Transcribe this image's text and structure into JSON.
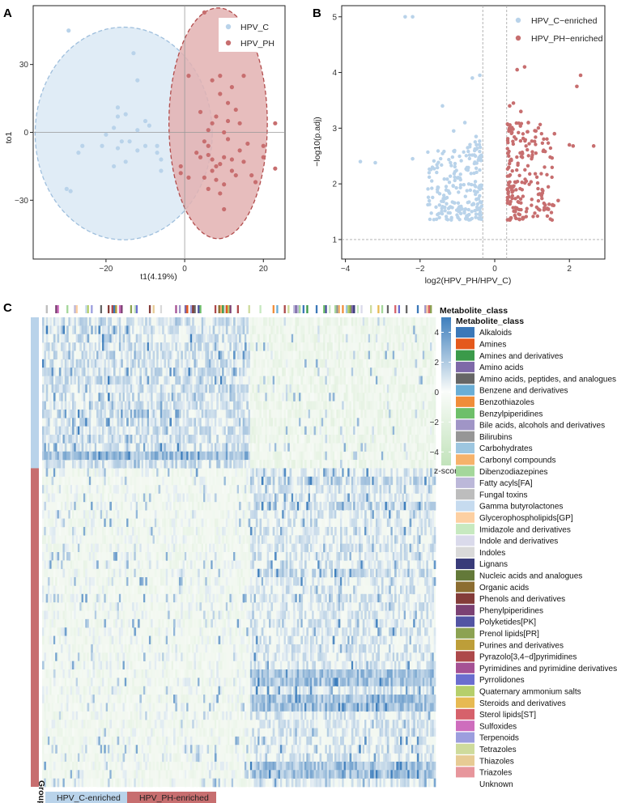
{
  "panels": {
    "A": "A",
    "B": "B",
    "C": "C"
  },
  "colors": {
    "hpv_c": "#b9d3ea",
    "hpv_ph": "#c76e6f",
    "ellipse_c_fill": "#d6e5f3",
    "ellipse_ph_fill": "#e3b2b2",
    "heat_high": "#3f7fbd",
    "heat_low": "#cfe8c9"
  },
  "chart_data": [
    {
      "id": "opls_da",
      "type": "scatter",
      "title": "",
      "xlabel": "t1(4.19%)",
      "ylabel": "to1",
      "xlim": [
        -38.5,
        25.5
      ],
      "ylim": [
        -56,
        56
      ],
      "xticks": [
        -20,
        0,
        20
      ],
      "yticks": [
        -30,
        0,
        30
      ],
      "xtick_labels": [
        "−20",
        "0",
        "20"
      ],
      "ytick_labels": [
        "−30",
        "0",
        "30"
      ],
      "legend": [
        "HPV_C",
        "HPV_PH"
      ],
      "legend_position": "top-right",
      "ellipses": [
        {
          "group": "HPV_C",
          "cx": -15.5,
          "cy": -0.5,
          "rx": 22.5,
          "ry": 47
        },
        {
          "group": "HPV_PH",
          "cx": 8.5,
          "cy": 4,
          "rx": 12.5,
          "ry": 51
        }
      ],
      "series": [
        {
          "name": "HPV_C",
          "points": [
            [
              -29.5,
              45
            ],
            [
              -30,
              -25
            ],
            [
              -29,
              -26
            ],
            [
              -27,
              -9
            ],
            [
              -13,
              35
            ],
            [
              -12,
              23
            ],
            [
              -17,
              11
            ],
            [
              -17,
              7
            ],
            [
              -18,
              2
            ],
            [
              -17,
              -7
            ],
            [
              -20,
              -1
            ],
            [
              -21,
              -6
            ],
            [
              -18,
              -15
            ],
            [
              -16,
              -4
            ],
            [
              -15,
              8
            ],
            [
              -15,
              -13
            ],
            [
              -14,
              -4
            ],
            [
              -12,
              1
            ],
            [
              -12,
              -8
            ],
            [
              -10,
              -6
            ],
            [
              -10,
              5
            ],
            [
              -9,
              3
            ],
            [
              -7,
              -9
            ],
            [
              -7,
              -6
            ],
            [
              -6,
              -12
            ],
            [
              -6,
              -17
            ],
            [
              -26,
              -6
            ]
          ]
        },
        {
          "name": "HPV_PH",
          "points": [
            [
              5,
              53
            ],
            [
              1,
              25
            ],
            [
              -1,
              -15
            ],
            [
              -1,
              -18
            ],
            [
              1,
              -20
            ],
            [
              3,
              -9
            ],
            [
              4,
              9
            ],
            [
              4,
              -11
            ],
            [
              5,
              -4
            ],
            [
              5,
              -20
            ],
            [
              6,
              1
            ],
            [
              6,
              -6
            ],
            [
              6,
              -10
            ],
            [
              7,
              4
            ],
            [
              7,
              -12
            ],
            [
              7,
              -17
            ],
            [
              8,
              7
            ],
            [
              8,
              -15
            ],
            [
              8,
              -21
            ],
            [
              9,
              17
            ],
            [
              9,
              -14
            ],
            [
              9,
              -27
            ],
            [
              10,
              -11
            ],
            [
              10,
              -23
            ],
            [
              10,
              -34
            ],
            [
              11,
              -3
            ],
            [
              11,
              5
            ],
            [
              11,
              13
            ],
            [
              12,
              20
            ],
            [
              12,
              -12
            ],
            [
              12,
              -17
            ],
            [
              13,
              -19
            ],
            [
              14,
              4
            ],
            [
              14,
              -8
            ],
            [
              15,
              -13
            ],
            [
              15,
              25
            ],
            [
              17,
              -19
            ],
            [
              18,
              -22
            ],
            [
              20,
              -6
            ],
            [
              20,
              -11
            ],
            [
              23,
              4
            ],
            [
              23,
              -16
            ],
            [
              7,
              23
            ],
            [
              9,
              25
            ],
            [
              13,
              10
            ],
            [
              16,
              -5
            ],
            [
              10,
              0
            ],
            [
              6,
              -25
            ]
          ]
        }
      ]
    },
    {
      "id": "volcano",
      "type": "scatter",
      "title": "",
      "xlabel": "log2(HPV_PH/HPV_C)",
      "ylabel": "−log10(p.adj)",
      "xlim": [
        -4.1,
        2.95
      ],
      "ylim": [
        0.65,
        5.2
      ],
      "xticks": [
        -4,
        -2,
        0,
        2
      ],
      "yticks": [
        1,
        2,
        3,
        4,
        5
      ],
      "xtick_labels": [
        "−4",
        "−2",
        "0",
        "2"
      ],
      "ytick_labels": [
        "1",
        "2",
        "3",
        "4",
        "5"
      ],
      "threshold_lines": {
        "x": [
          -0.32,
          0.32
        ],
        "y": [
          1.0
        ]
      },
      "legend": [
        "HPV_C−enriched",
        "HPV_PH−enriched"
      ],
      "legend_position": "top-right",
      "series": [
        {
          "name": "HPV_C−enriched",
          "points": [
            [
              -2.4,
              5.0
            ],
            [
              -2.2,
              5.0
            ],
            [
              -0.4,
              3.95
            ],
            [
              -0.6,
              3.9
            ],
            [
              -1.4,
              3.4
            ],
            [
              -3.6,
              2.4
            ],
            [
              -3.2,
              2.38
            ],
            [
              -2.2,
              2.45
            ],
            [
              -0.8,
              3.1
            ],
            [
              -1.1,
              2.95
            ],
            [
              -0.5,
              2.85
            ]
          ]
        },
        {
          "name": "HPV_PH−enriched",
          "points": [
            [
              0.8,
              4.1
            ],
            [
              0.6,
              4.05
            ],
            [
              2.3,
              3.95
            ],
            [
              2.2,
              3.75
            ],
            [
              0.5,
              3.45
            ],
            [
              0.4,
              3.4
            ],
            [
              0.7,
              3.3
            ],
            [
              0.9,
              3.1
            ],
            [
              1.1,
              2.95
            ],
            [
              1.6,
              2.9
            ],
            [
              2.0,
              2.7
            ],
            [
              2.1,
              2.68
            ],
            [
              2.65,
              2.68
            ],
            [
              1.7,
              1.7
            ],
            [
              1.4,
              1.55
            ]
          ]
        }
      ]
    },
    {
      "id": "heatmap",
      "type": "heatmap",
      "title": "",
      "n_rows": 56,
      "n_cols": 210,
      "row_groups": [
        {
          "name": "HPV_C-enriched",
          "rows": 18
        },
        {
          "name": "HPV_PH-enriched",
          "rows": 38
        }
      ],
      "col_split_fraction": 0.53,
      "colorbar_title": "Metabolite_class",
      "colorbar_label": "z-score",
      "colorbar_range": [
        -4.9,
        5
      ],
      "colorbar_ticks": [
        4,
        2,
        0,
        -2,
        -4
      ],
      "colorbar_tick_labels": [
        "4",
        "2",
        "0",
        "−2",
        "−4"
      ],
      "group_label": "Group",
      "group_legend": [
        "HPV_C-enriched",
        "HPV_PH-enriched"
      ],
      "class_legend_title": "Metabolite_class",
      "metabolite_classes": [
        {
          "name": "Alkaloids",
          "color": "#3b78b8"
        },
        {
          "name": "Amines",
          "color": "#e4591c"
        },
        {
          "name": "Amines and derivatives",
          "color": "#3b9a4a"
        },
        {
          "name": "Amino acids",
          "color": "#7e69a8"
        },
        {
          "name": "Amino acids, peptides, and analogues",
          "color": "#666666"
        },
        {
          "name": "Benzene and derivatives",
          "color": "#6aaed6"
        },
        {
          "name": "Benzothiazoles",
          "color": "#f08d3a"
        },
        {
          "name": "Benzylpiperidines",
          "color": "#6ebf6a"
        },
        {
          "name": "Bile acids, alcohols and derivatives",
          "color": "#a095c6"
        },
        {
          "name": "Bilirubins",
          "color": "#969696"
        },
        {
          "name": "Carbohydrates",
          "color": "#9dc6e0"
        },
        {
          "name": "Carbonyl compounds",
          "color": "#f6b26b"
        },
        {
          "name": "Dibenzodiazepines",
          "color": "#a4d79b"
        },
        {
          "name": "Fatty acyls[FA]",
          "color": "#bcb8d9"
        },
        {
          "name": "Fungal toxins",
          "color": "#bdbdbd"
        },
        {
          "name": "Gamma butyrolactones",
          "color": "#c6dbef"
        },
        {
          "name": "Glycerophospholipids[GP]",
          "color": "#fdd0a2"
        },
        {
          "name": "Imidazole and derivatives",
          "color": "#c7e9c0"
        },
        {
          "name": "Indole and derivatives",
          "color": "#dadaeb"
        },
        {
          "name": "Indoles",
          "color": "#d9d9d9"
        },
        {
          "name": "Lignans",
          "color": "#393b79"
        },
        {
          "name": "Nucleic acids and analogues",
          "color": "#637939"
        },
        {
          "name": "Organic acids",
          "color": "#8c6d31"
        },
        {
          "name": "Phenols and derivatives",
          "color": "#843c39"
        },
        {
          "name": "Phenylpiperidines",
          "color": "#7b4173"
        },
        {
          "name": "Polyketides[PK]",
          "color": "#5254a3"
        },
        {
          "name": "Prenol lipids[PR]",
          "color": "#8ca252"
        },
        {
          "name": "Purines and derivatives",
          "color": "#bd9e39"
        },
        {
          "name": "Pyrazolo[3,4−d]pyrimidines",
          "color": "#ad494a"
        },
        {
          "name": "Pyrimidines and pyrimidine derivatives",
          "color": "#a55194"
        },
        {
          "name": "Pyrrolidones",
          "color": "#6b6ecf"
        },
        {
          "name": "Quaternary ammonium salts",
          "color": "#b5cf6b"
        },
        {
          "name": "Steroids and derivatives",
          "color": "#e7ba52"
        },
        {
          "name": "Sterol lipids[ST]",
          "color": "#d6616b"
        },
        {
          "name": "Sulfoxides",
          "color": "#ce6dbd"
        },
        {
          "name": "Terpenoids",
          "color": "#9c9ede"
        },
        {
          "name": "Tetrazoles",
          "color": "#cedb9c"
        },
        {
          "name": "Thiazoles",
          "color": "#e7cb94"
        },
        {
          "name": "Triazoles",
          "color": "#e7969c"
        },
        {
          "name": "Unknown",
          "color": "#ffffff"
        }
      ]
    }
  ]
}
